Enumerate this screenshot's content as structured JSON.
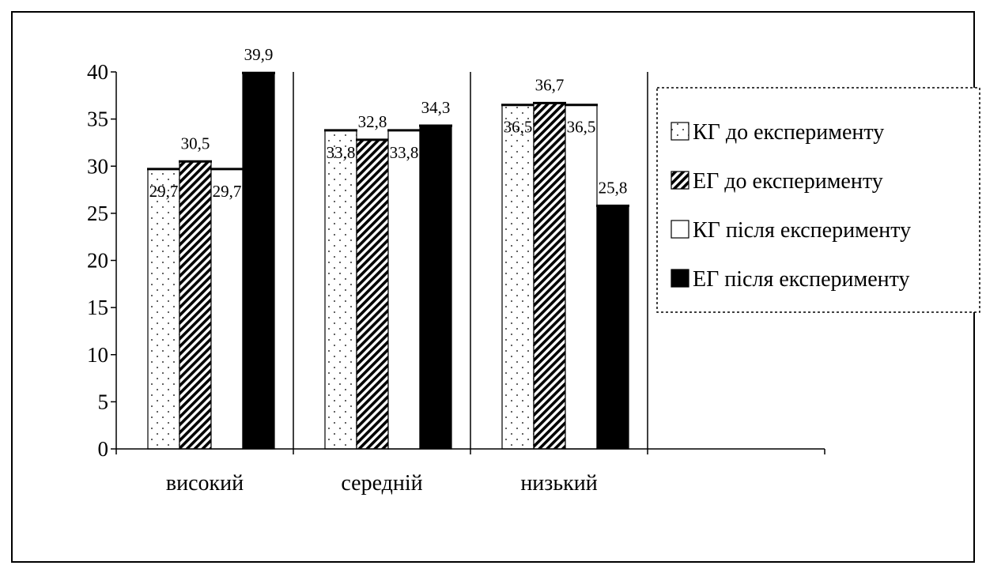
{
  "chart_data": {
    "type": "bar",
    "categories": [
      "високий",
      "середній",
      "низький"
    ],
    "series": [
      {
        "name": "КГ до експерименту",
        "values": [
          29.7,
          33.8,
          36.5
        ],
        "label_texts": [
          "29,7",
          "33,8",
          "36,5"
        ],
        "pattern": "dots"
      },
      {
        "name": "ЕГ до експерименту",
        "values": [
          30.5,
          32.8,
          36.7
        ],
        "label_texts": [
          "30,5",
          "32,8",
          "36,7"
        ],
        "pattern": "hatch"
      },
      {
        "name": "КГ після експерименту",
        "values": [
          29.7,
          33.8,
          36.5
        ],
        "label_texts": [
          "29,7",
          "33,8",
          "36,5"
        ],
        "pattern": "white"
      },
      {
        "name": "ЕГ після експерименту",
        "values": [
          39.9,
          34.3,
          25.8
        ],
        "label_texts": [
          "39,9",
          "34,3",
          "25,8"
        ],
        "pattern": "black"
      }
    ],
    "title": "",
    "xlabel": "",
    "ylabel": "",
    "ylim": [
      0,
      40
    ],
    "y_ticks": [
      0,
      5,
      10,
      15,
      20,
      25,
      30,
      35,
      40
    ],
    "grid": false,
    "legend_position": "right",
    "colors": {
      "ink": "#000000",
      "paper": "#ffffff"
    }
  }
}
